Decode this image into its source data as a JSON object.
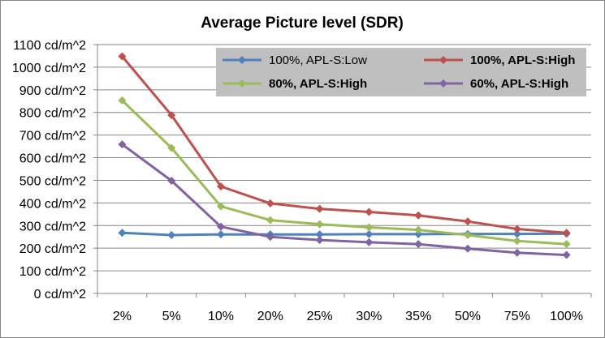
{
  "chart_data": {
    "type": "line",
    "title": "Average Picture level (SDR)",
    "xlabel": "",
    "ylabel": "",
    "categories": [
      "2%",
      "5%",
      "10%",
      "20%",
      "25%",
      "30%",
      "35%",
      "50%",
      "75%",
      "100%"
    ],
    "y_tick_labels": [
      "0 cd/m^2",
      "100 cd/m^2",
      "200 cd/m^2",
      "300 cd/m^2",
      "400 cd/m^2",
      "500 cd/m^2",
      "600 cd/m^2",
      "700 cd/m^2",
      "800 cd/m^2",
      "900 cd/m^2",
      "1000 cd/m^2",
      "1100 cd/m^2"
    ],
    "ylim": [
      0,
      1100
    ],
    "y_tick_step": 100,
    "grid": true,
    "legend_position": "top-right",
    "series": [
      {
        "name": "100%, APL-S:Low",
        "color": "#4f81bd",
        "bold": false,
        "values": [
          268,
          258,
          261,
          261,
          261,
          262,
          262,
          263,
          263,
          264
        ]
      },
      {
        "name": "100%, APL-S:High",
        "color": "#c0504d",
        "bold": true,
        "values": [
          1048,
          788,
          473,
          398,
          374,
          360,
          345,
          318,
          285,
          268
        ]
      },
      {
        "name": "80%, APL-S:High",
        "color": "#9bbb59",
        "bold": true,
        "values": [
          853,
          643,
          385,
          324,
          306,
          292,
          281,
          258,
          232,
          218
        ]
      },
      {
        "name": "60%, APL-S:High",
        "color": "#8064a2",
        "bold": true,
        "values": [
          659,
          498,
          295,
          250,
          236,
          226,
          218,
          198,
          180,
          170
        ]
      }
    ]
  }
}
